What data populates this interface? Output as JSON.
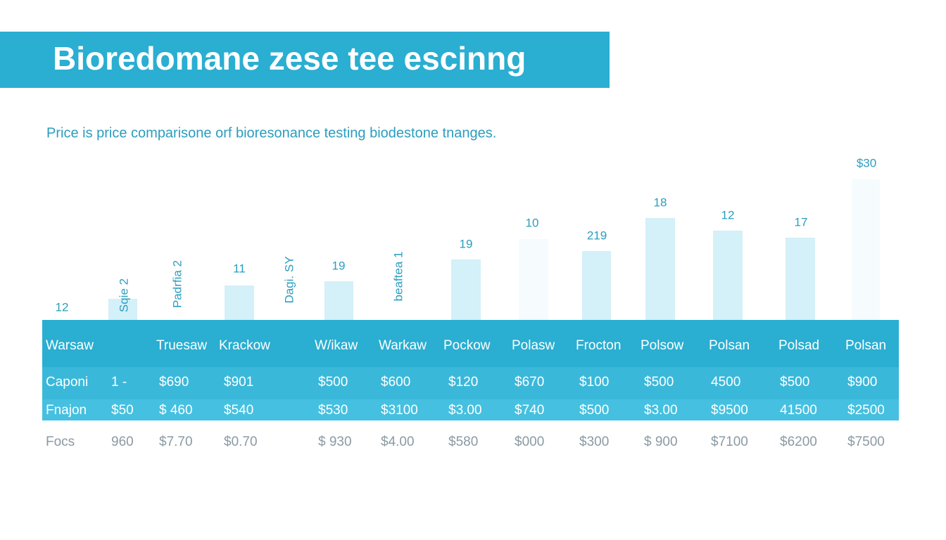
{
  "header": {
    "title": "Bioredomane zese tee escinng"
  },
  "subtitle": "Price is price comparisone orf bioresonance testing biodestone tnanges.",
  "bar_labels": [
    "12",
    "Sqie 2",
    "Padrfia 2",
    "11",
    "Dagi. SY",
    "19",
    "beaftea 1",
    "19",
    "10",
    "219",
    "18",
    "12",
    "17",
    "$30"
  ],
  "table": {
    "header": [
      "Warsaw",
      "Truesaw",
      "Krackow",
      "W/ikaw",
      "Warkaw",
      "Pockow",
      "Polasw",
      "Frocton",
      "Polsow",
      "Polsan",
      "Polsad",
      "Polsan"
    ],
    "rows": [
      [
        "Caponi",
        "1 -",
        "$690",
        "$901",
        "$500",
        "$600",
        "$120",
        "$670",
        "$100",
        "$500",
        "4500",
        "$500",
        "$900"
      ],
      [
        "Fnajon",
        "$50",
        "$ 460",
        "$540",
        "$530",
        "$3100",
        "$3.00",
        "$740",
        "$500",
        "$3.00",
        "$9500",
        "41500",
        "$2500"
      ],
      [
        "Focs",
        "960",
        "$7.70",
        "$0.70",
        "$ 930",
        "$4.00",
        "$580",
        "$000",
        "$300",
        "$ 900",
        "$7100",
        "$6200",
        "$7500"
      ]
    ]
  }
}
